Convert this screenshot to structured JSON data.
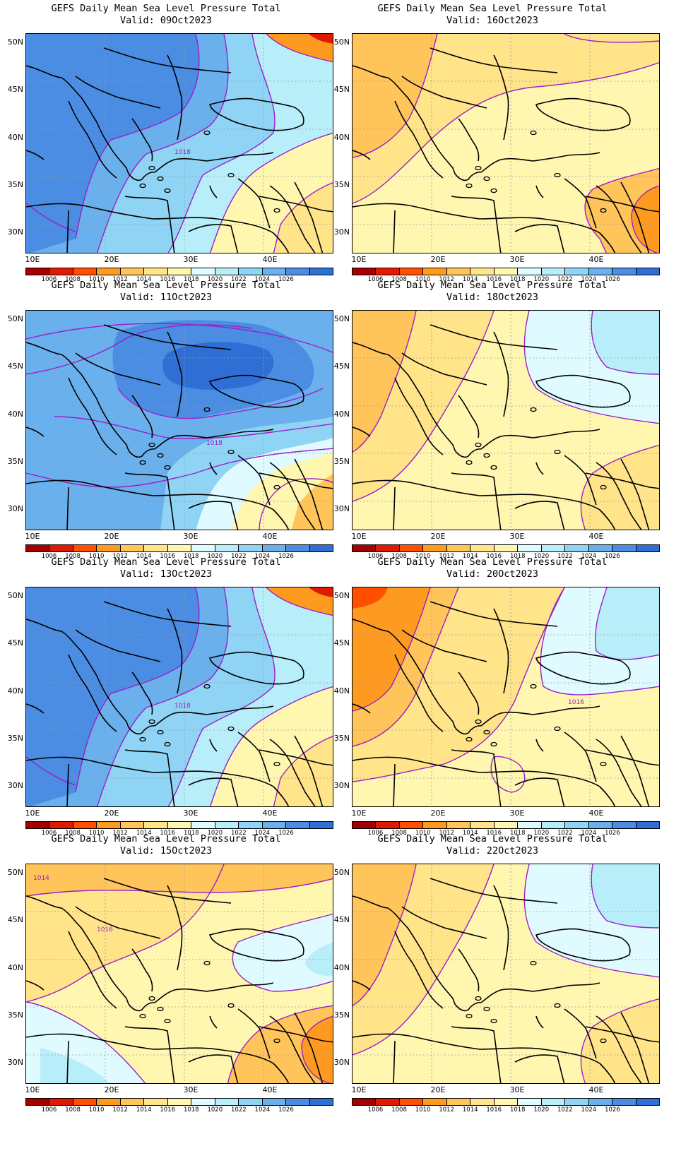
{
  "panels": [
    {
      "title": "GEFS Daily Mean Sea Level Pressure Total",
      "valid": "Valid: 09Oct2023",
      "isobar_label": "1018",
      "regime": "high-west"
    },
    {
      "title": "GEFS Daily Mean Sea Level Pressure Total",
      "valid": "Valid: 16Oct2023",
      "isobar_label": "",
      "regime": "low-warm"
    },
    {
      "title": "GEFS Daily Mean Sea Level Pressure Total",
      "valid": "Valid: 11Oct2023",
      "isobar_label": "1018",
      "regime": "high-centre"
    },
    {
      "title": "GEFS Daily Mean Sea Level Pressure Total",
      "valid": "Valid: 18Oct2023",
      "isobar_label": "",
      "regime": "mixed"
    },
    {
      "title": "GEFS Daily Mean Sea Level Pressure Total",
      "valid": "Valid: 13Oct2023",
      "isobar_label": "1018",
      "regime": "high-west"
    },
    {
      "title": "GEFS Daily Mean Sea Level Pressure Total",
      "valid": "Valid: 20Oct2023",
      "isobar_label": "1016",
      "regime": "low-west"
    },
    {
      "title": "GEFS Daily Mean Sea Level Pressure Total",
      "valid": "Valid: 15Oct2023",
      "isobar_label": "1014",
      "isobar_label_2": "1016",
      "regime": "mixed-low"
    },
    {
      "title": "GEFS Daily Mean Sea Level Pressure Total",
      "valid": "Valid: 22Oct2023",
      "isobar_label": "",
      "regime": "mixed"
    }
  ],
  "axes": {
    "lat_labels": [
      "50N",
      "45N",
      "40N",
      "35N",
      "30N"
    ],
    "lon_labels": [
      "10E",
      "20E",
      "30E",
      "40E"
    ]
  },
  "colorbar": {
    "labels": [
      "1006",
      "1008",
      "1010",
      "1012",
      "1014",
      "1016",
      "1018",
      "1020",
      "1022",
      "1024",
      "1026"
    ],
    "colors": [
      "#a50000",
      "#e01a00",
      "#ff5000",
      "#ff9a20",
      "#ffc45a",
      "#ffe48a",
      "#fff6b0",
      "#e0fbff",
      "#b8eefa",
      "#8fd4f4",
      "#6ab0ec",
      "#4a8de2",
      "#2f6fd5"
    ]
  },
  "colors": {
    "isobar": "#9b1fc9",
    "coast": "#000000",
    "grid": "#9a9a9a"
  }
}
